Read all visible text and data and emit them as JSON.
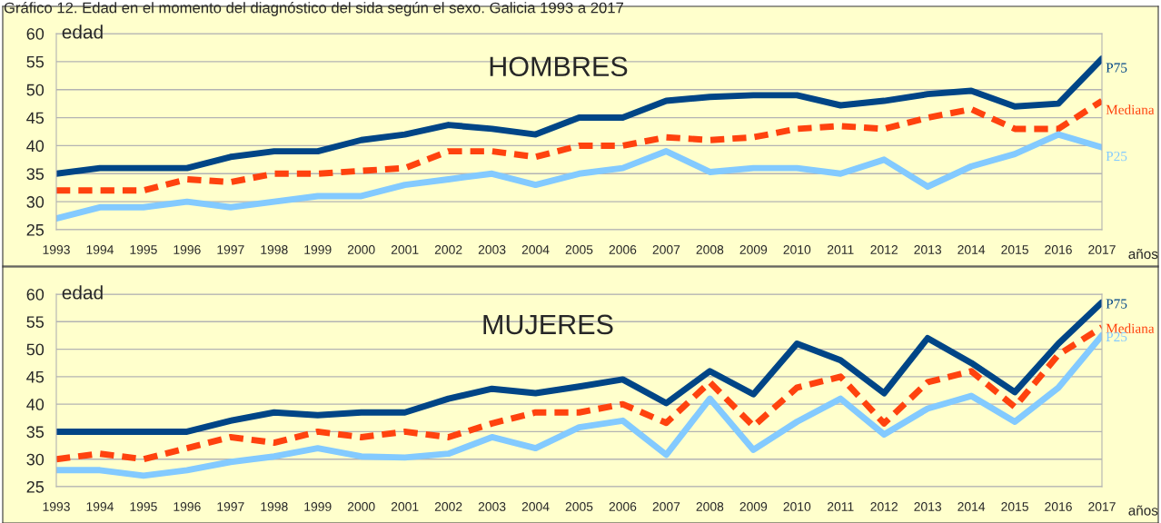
{
  "chart_data": [
    {
      "type": "line",
      "title": "HOMBRES",
      "xlabel": "años",
      "ylabel": "edad",
      "annotations": [
        "Gráfico 12. Edad en el momento del diagnóstico del sida según el sexo. Galicia 1993 a 2017"
      ],
      "x": [
        1993,
        1994,
        1995,
        1996,
        1997,
        1998,
        1999,
        2000,
        2001,
        2002,
        2003,
        2004,
        2005,
        2006,
        2007,
        2008,
        2009,
        2010,
        2011,
        2012,
        2013,
        2014,
        2015,
        2016,
        2017
      ],
      "series": [
        {
          "name": "P75",
          "color": "#004586",
          "line_style": "solid",
          "values": [
            35,
            36,
            36,
            36,
            38,
            39,
            39,
            41,
            42,
            43.7,
            43,
            42,
            45,
            45,
            48,
            48.7,
            49,
            49,
            47.2,
            48,
            49.2,
            49.8,
            47,
            47.5,
            55.5
          ]
        },
        {
          "name": "Mediana",
          "color": "#ff420e",
          "line_style": "dashed",
          "values": [
            32,
            32,
            32,
            34,
            33.5,
            35,
            35,
            35.5,
            36,
            39,
            39,
            38,
            40,
            40,
            41.5,
            41,
            41.5,
            43,
            43.5,
            43,
            45,
            46.5,
            43,
            43,
            48
          ]
        },
        {
          "name": "P25",
          "color": "#83caff",
          "line_style": "solid",
          "values": [
            27,
            29,
            29,
            30,
            29,
            30,
            31,
            31,
            33,
            34,
            35,
            33,
            35,
            36,
            39,
            35.3,
            36,
            36,
            35,
            37.5,
            32.7,
            36.3,
            38.5,
            42,
            39.7
          ]
        }
      ],
      "xlim": [
        1993,
        2017
      ],
      "xticks": [
        1993,
        1994,
        1995,
        1996,
        1997,
        1998,
        1999,
        2000,
        2001,
        2002,
        2003,
        2004,
        2005,
        2006,
        2007,
        2008,
        2009,
        2010,
        2011,
        2012,
        2013,
        2014,
        2015,
        2016,
        2017
      ],
      "ylim": [
        25,
        60
      ],
      "yticks": [
        25,
        30,
        35,
        40,
        45,
        50,
        55,
        60
      ],
      "grid": "y",
      "legend": false
    },
    {
      "type": "line",
      "title": "MUJERES",
      "xlabel": "años",
      "ylabel": "edad",
      "x": [
        1993,
        1994,
        1995,
        1996,
        1997,
        1998,
        1999,
        2000,
        2001,
        2002,
        2003,
        2004,
        2005,
        2006,
        2007,
        2008,
        2009,
        2010,
        2011,
        2012,
        2013,
        2014,
        2015,
        2016,
        2017
      ],
      "series": [
        {
          "name": "P75",
          "color": "#004586",
          "line_style": "solid",
          "values": [
            35,
            35,
            35,
            35,
            37,
            38.5,
            38,
            38.5,
            38.5,
            41,
            42.8,
            42,
            43.2,
            44.5,
            40.2,
            46,
            41.8,
            51,
            48,
            42,
            52,
            47.5,
            42.2,
            51,
            58.5
          ]
        },
        {
          "name": "Mediana",
          "color": "#ff420e",
          "line_style": "dashed",
          "values": [
            30,
            31,
            30,
            32,
            34,
            33,
            35,
            34,
            35,
            34,
            36.5,
            38.5,
            38.5,
            40,
            36.6,
            44,
            36,
            43,
            45,
            36.5,
            44,
            46,
            39.5,
            49,
            54
          ]
        },
        {
          "name": "P25",
          "color": "#83caff",
          "line_style": "solid",
          "values": [
            28,
            28,
            27,
            28,
            29.5,
            30.5,
            32,
            30.5,
            30.3,
            31,
            34,
            32,
            35.8,
            37,
            30.8,
            41,
            31.7,
            36.8,
            41,
            34.5,
            39.2,
            41.5,
            36.8,
            43,
            52.5
          ]
        }
      ],
      "xlim": [
        1993,
        2017
      ],
      "xticks": [
        1993,
        1994,
        1995,
        1996,
        1997,
        1998,
        1999,
        2000,
        2001,
        2002,
        2003,
        2004,
        2005,
        2006,
        2007,
        2008,
        2009,
        2010,
        2011,
        2012,
        2013,
        2014,
        2015,
        2016,
        2017
      ],
      "ylim": [
        25,
        60
      ],
      "yticks": [
        25,
        30,
        35,
        40,
        45,
        50,
        55,
        60
      ],
      "grid": "y",
      "legend": false
    }
  ]
}
